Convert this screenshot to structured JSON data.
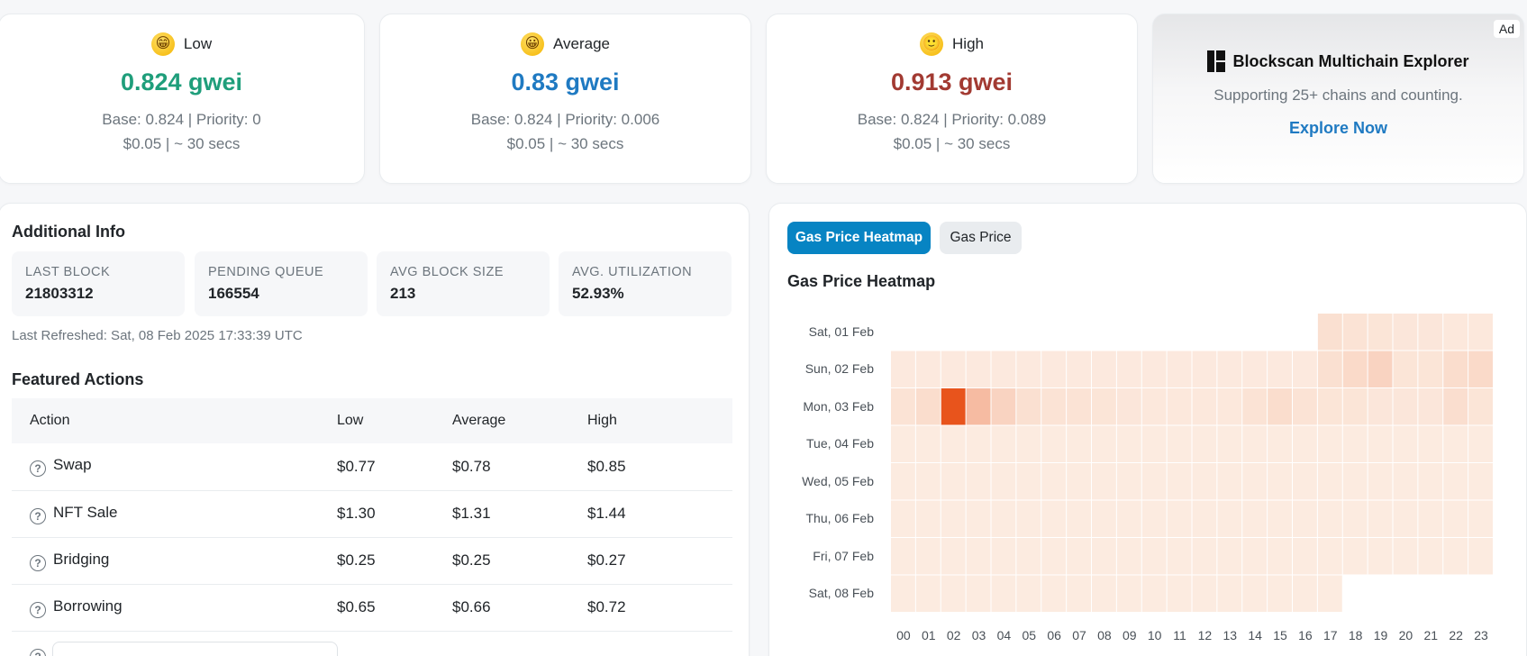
{
  "gas_cards": [
    {
      "label": "Low",
      "emoji": "😁",
      "value": "0.824 gwei",
      "color": "#1f9e7b",
      "detail": "Base: 0.824 | Priority: 0",
      "cost": "$0.05 | ~ 30 secs"
    },
    {
      "label": "Average",
      "emoji": "😀",
      "value": "0.83 gwei",
      "color": "#1f7ac2",
      "detail": "Base: 0.824 | Priority: 0.006",
      "cost": "$0.05 | ~ 30 secs"
    },
    {
      "label": "High",
      "emoji": "🙂",
      "value": "0.913 gwei",
      "color": "#a23a32",
      "detail": "Base: 0.824 | Priority: 0.089",
      "cost": "$0.05 | ~ 30 secs"
    }
  ],
  "ad": {
    "badge": "Ad",
    "title": "Blockscan Multichain Explorer",
    "subtitle": "Supporting 25+ chains and counting.",
    "link": "Explore Now"
  },
  "additional_info": {
    "title": "Additional Info",
    "stats": [
      {
        "label": "LAST BLOCK",
        "value": "21803312"
      },
      {
        "label": "PENDING QUEUE",
        "value": "166554"
      },
      {
        "label": "AVG BLOCK SIZE",
        "value": "213"
      },
      {
        "label": "AVG. UTILIZATION",
        "value": "52.93%"
      }
    ],
    "last_refreshed": "Last Refreshed: Sat, 08 Feb 2025 17:33:39 UTC"
  },
  "featured_actions": {
    "title": "Featured Actions",
    "headers": [
      "Action",
      "Low",
      "Average",
      "High"
    ],
    "rows": [
      {
        "action": "Swap",
        "low": "$0.77",
        "average": "$0.78",
        "high": "$0.85"
      },
      {
        "action": "NFT Sale",
        "low": "$1.30",
        "average": "$1.31",
        "high": "$1.44"
      },
      {
        "action": "Bridging",
        "low": "$0.25",
        "average": "$0.25",
        "high": "$0.27"
      },
      {
        "action": "Borrowing",
        "low": "$0.65",
        "average": "$0.66",
        "high": "$0.72"
      }
    ]
  },
  "heatmap_panel": {
    "tabs": [
      "Gas Price Heatmap",
      "Gas Price"
    ],
    "active_tab": "Gas Price Heatmap",
    "title": "Gas Price Heatmap"
  },
  "chart_data": {
    "type": "heatmap",
    "title": "Gas Price Heatmap",
    "rows": [
      "Sat, 01 Feb",
      "Sun, 02 Feb",
      "Mon, 03 Feb",
      "Tue, 04 Feb",
      "Wed, 05 Feb",
      "Thu, 06 Feb",
      "Fri, 07 Feb",
      "Sat, 08 Feb"
    ],
    "columns": [
      "00",
      "01",
      "02",
      "03",
      "04",
      "05",
      "06",
      "07",
      "08",
      "09",
      "10",
      "11",
      "12",
      "13",
      "14",
      "15",
      "16",
      "17",
      "18",
      "19",
      "20",
      "21",
      "22",
      "23"
    ],
    "intensity_scale": [
      0,
      1
    ],
    "color_low": "#fdf3ea",
    "color_high": "#e8541c",
    "values": [
      [
        null,
        null,
        null,
        null,
        null,
        null,
        null,
        null,
        null,
        null,
        null,
        null,
        null,
        null,
        null,
        null,
        null,
        0.12,
        0.1,
        0.09,
        0.08,
        0.08,
        0.07,
        0.07
      ],
      [
        0.06,
        0.06,
        0.06,
        0.06,
        0.06,
        0.06,
        0.06,
        0.06,
        0.06,
        0.06,
        0.06,
        0.06,
        0.06,
        0.06,
        0.06,
        0.06,
        0.06,
        0.12,
        0.16,
        0.2,
        0.09,
        0.09,
        0.14,
        0.16
      ],
      [
        0.1,
        0.14,
        1.0,
        0.35,
        0.2,
        0.12,
        0.1,
        0.1,
        0.09,
        0.08,
        0.07,
        0.07,
        0.07,
        0.07,
        0.1,
        0.14,
        0.1,
        0.09,
        0.09,
        0.08,
        0.08,
        0.08,
        0.13,
        0.09
      ],
      [
        0.05,
        0.05,
        0.05,
        0.05,
        0.05,
        0.05,
        0.05,
        0.05,
        0.05,
        0.05,
        0.05,
        0.05,
        0.05,
        0.05,
        0.05,
        0.05,
        0.05,
        0.05,
        0.05,
        0.05,
        0.05,
        0.05,
        0.05,
        0.05
      ],
      [
        0.05,
        0.05,
        0.05,
        0.05,
        0.05,
        0.05,
        0.05,
        0.05,
        0.05,
        0.05,
        0.05,
        0.05,
        0.05,
        0.05,
        0.05,
        0.05,
        0.05,
        0.05,
        0.05,
        0.05,
        0.05,
        0.05,
        0.05,
        0.05
      ],
      [
        0.05,
        0.05,
        0.05,
        0.05,
        0.05,
        0.05,
        0.05,
        0.05,
        0.05,
        0.05,
        0.05,
        0.05,
        0.05,
        0.05,
        0.05,
        0.05,
        0.05,
        0.05,
        0.05,
        0.05,
        0.05,
        0.05,
        0.05,
        0.05
      ],
      [
        0.05,
        0.05,
        0.05,
        0.05,
        0.05,
        0.05,
        0.05,
        0.05,
        0.05,
        0.05,
        0.05,
        0.05,
        0.05,
        0.05,
        0.05,
        0.05,
        0.05,
        0.05,
        0.05,
        0.05,
        0.05,
        0.05,
        0.05,
        0.05
      ],
      [
        0.05,
        0.05,
        0.05,
        0.05,
        0.05,
        0.05,
        0.05,
        0.05,
        0.05,
        0.05,
        0.05,
        0.05,
        0.05,
        0.05,
        0.05,
        0.05,
        0.05,
        0.05,
        null,
        null,
        null,
        null,
        null,
        null
      ]
    ]
  }
}
